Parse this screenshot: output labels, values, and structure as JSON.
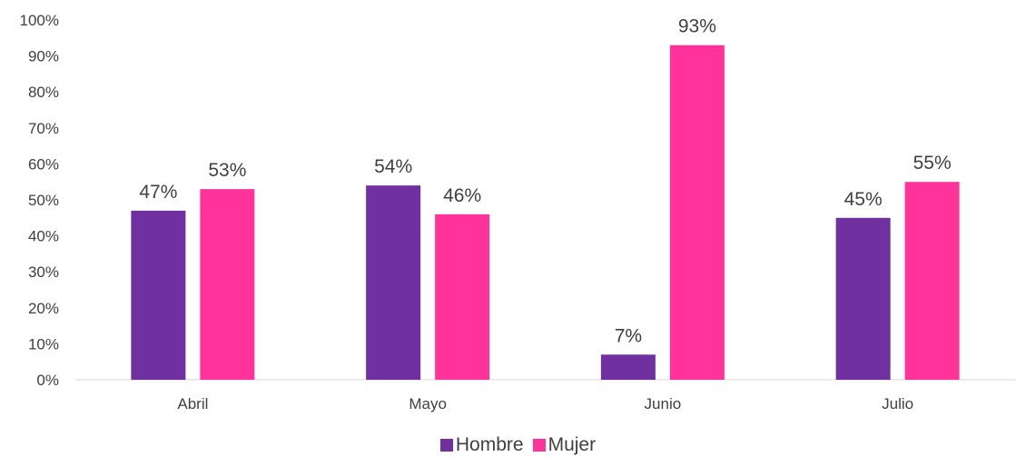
{
  "chart_data": {
    "type": "bar",
    "categories": [
      "Abril",
      "Mayo",
      "Junio",
      "Julio"
    ],
    "series": [
      {
        "name": "Hombre",
        "color": "#7030A0",
        "values": [
          47,
          54,
          7,
          45
        ],
        "labels": [
          "47%",
          "54%",
          "7%",
          "45%"
        ]
      },
      {
        "name": "Mujer",
        "color": "#FF3399",
        "values": [
          53,
          46,
          93,
          55
        ],
        "labels": [
          "53%",
          "46%",
          "93%",
          "55%"
        ]
      }
    ],
    "ylim": [
      0,
      100
    ],
    "yticks": [
      "0%",
      "10%",
      "20%",
      "30%",
      "40%",
      "50%",
      "60%",
      "70%",
      "80%",
      "90%",
      "100%"
    ],
    "xlabel": "",
    "ylabel": "",
    "title": "",
    "grid": false,
    "legend_position": "bottom"
  }
}
